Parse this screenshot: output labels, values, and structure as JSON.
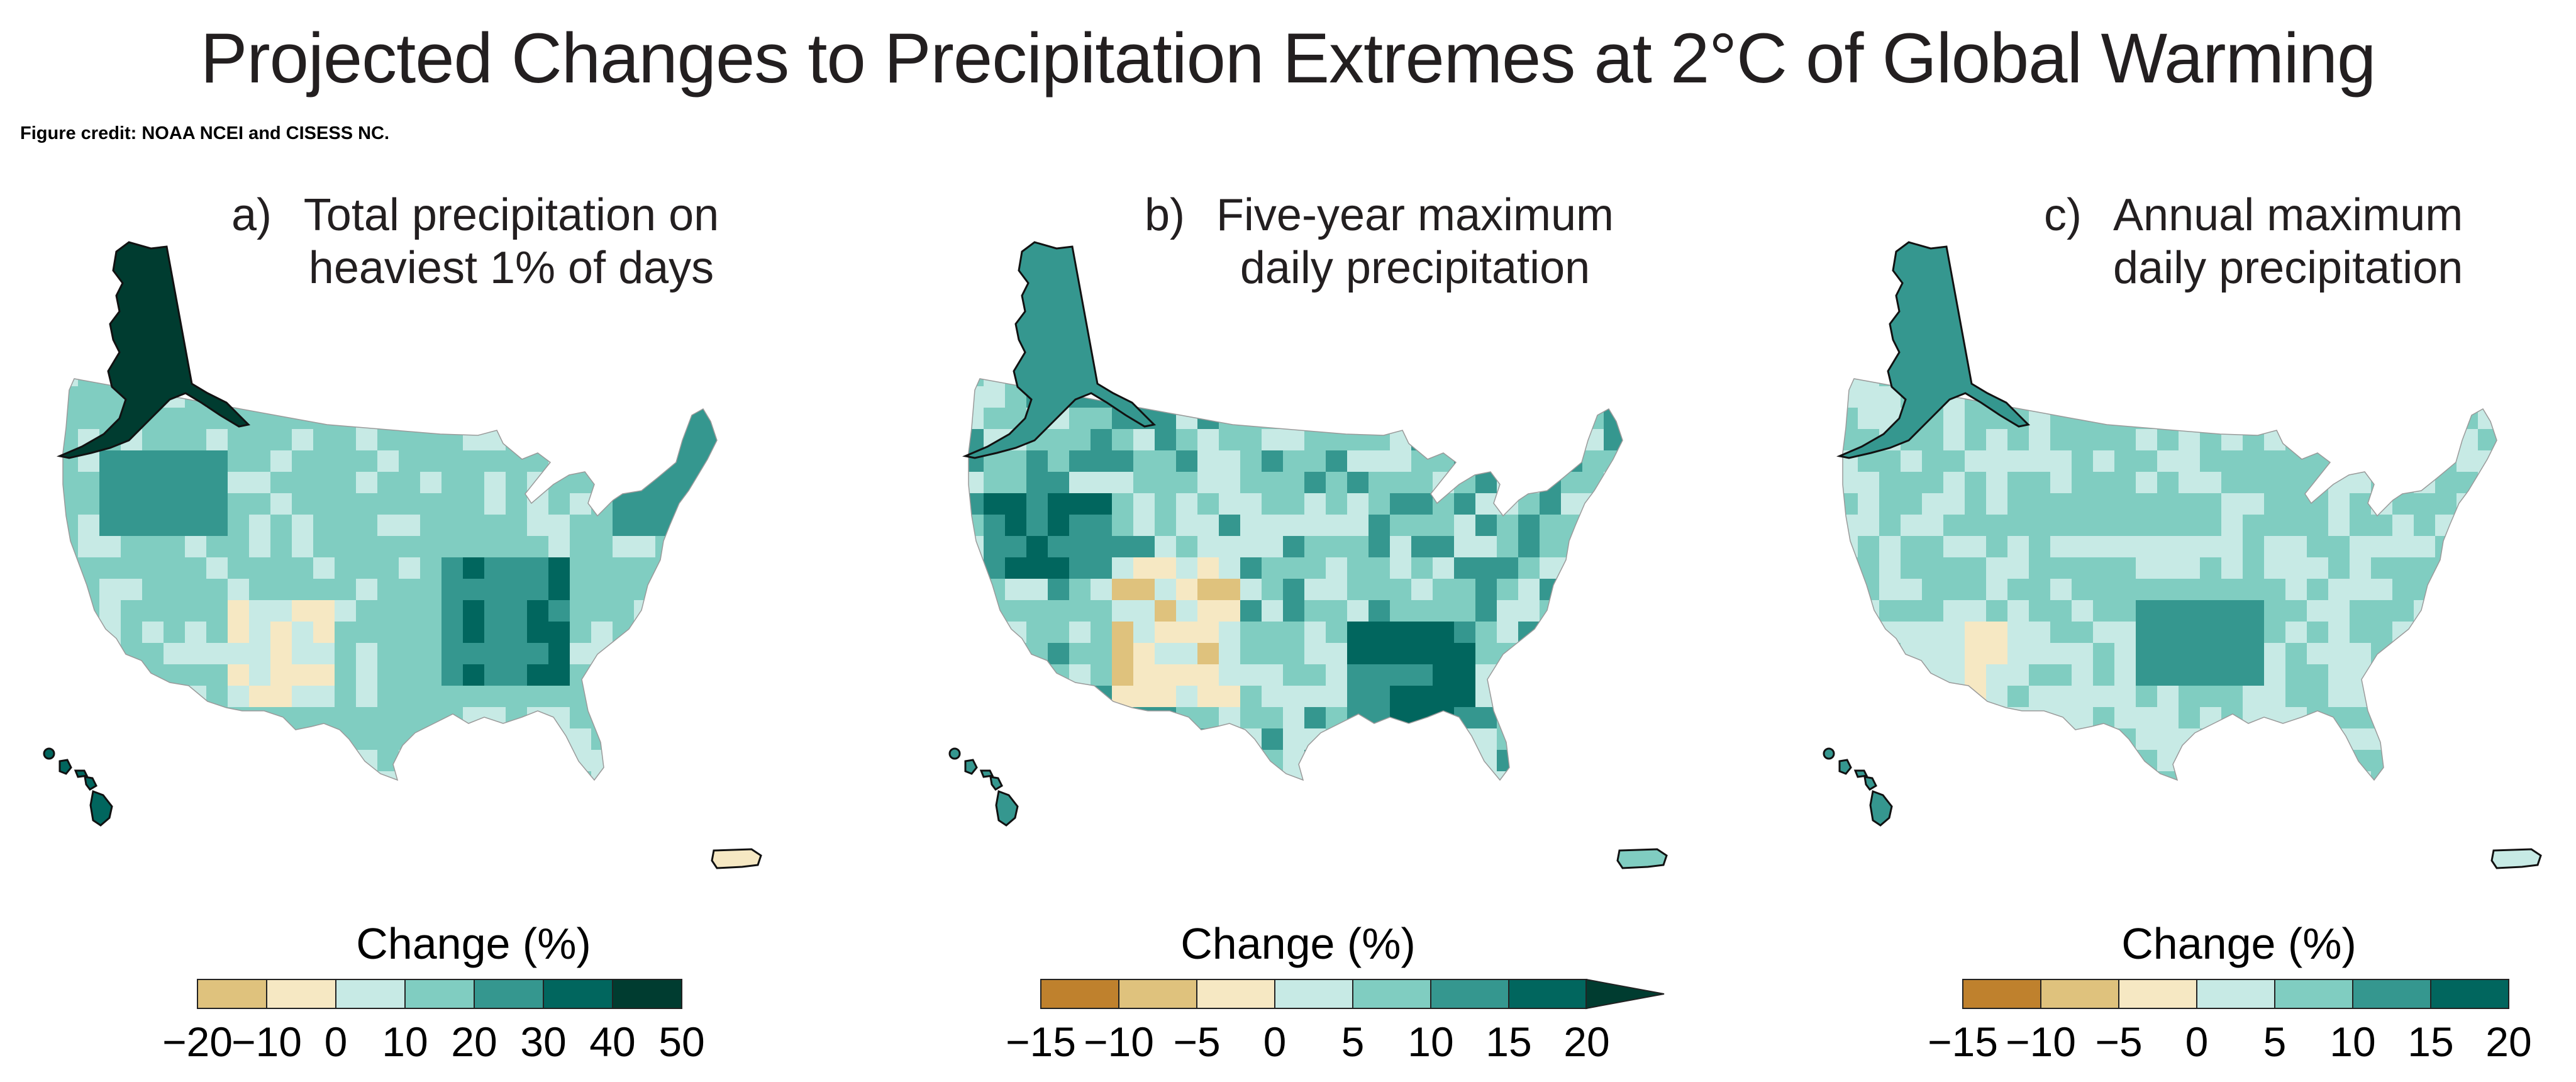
{
  "title": "Projected Changes to Precipitation Extremes at 2°C of Global Warming",
  "credit": "Figure credit: NOAA NCEI and CISESS NC.",
  "palette": {
    "-3": "#bf812d",
    "-2": "#dfc27d",
    "-1": "#f6e8c3",
    "0": "#c7eae5",
    "1": "#80cdc1",
    "2": "#35978f",
    "3": "#01665e",
    "4": "#003c30"
  },
  "chart_data": [
    {
      "type": "heatmap",
      "panel": "a)",
      "title": "Total precipitation on heaviest 1% of days",
      "legend_title": "Change (%)",
      "bins": [
        -20,
        -10,
        0,
        10,
        20,
        30,
        40,
        50
      ],
      "tick_labels": [
        "−20",
        "−10",
        "0",
        "10",
        "20",
        "30",
        "40",
        "50"
      ],
      "colors": [
        "#dfc27d",
        "#f6e8c3",
        "#c7eae5",
        "#80cdc1",
        "#35978f",
        "#01665e",
        "#003c30"
      ],
      "extend_arrow": false,
      "regions": {
        "alaska": "30 to 40 (+)",
        "hawaii": "30 to 40",
        "puerto_rico": "-10 to 0",
        "conus_dominant": "10 to 20",
        "southeast_tennessee_valley": "20 to 40",
        "northeast_maine": "20 to 30",
        "southwest_new_mexico_arizona": "-10 to 10"
      }
    },
    {
      "type": "heatmap",
      "panel": "b)",
      "title": "Five-year maximum daily precipitation",
      "legend_title": "Change (%)",
      "bins": [
        -15,
        -10,
        -5,
        0,
        5,
        10,
        15,
        20
      ],
      "tick_labels": [
        "−15",
        "−10",
        "−5",
        "0",
        "5",
        "10",
        "15",
        "20"
      ],
      "colors": [
        "#bf812d",
        "#dfc27d",
        "#f6e8c3",
        "#c7eae5",
        "#80cdc1",
        "#35978f",
        "#01665e",
        "#003c30"
      ],
      "extend_arrow": true,
      "regions": {
        "alaska": "10 to 15",
        "hawaii": "10 to 15",
        "puerto_rico": "5 to 10",
        "conus_dominant": "0 to 15 (patchy)",
        "great_plains_northwest": "15 to 20+",
        "southwest_colorado_new_mexico": "-15 to 0"
      }
    },
    {
      "type": "heatmap",
      "panel": "c)",
      "title": "Annual maximum daily precipitation",
      "legend_title": "Change (%)",
      "bins": [
        -15,
        -10,
        -5,
        0,
        5,
        10,
        15,
        20
      ],
      "tick_labels": [
        "−15",
        "−10",
        "−5",
        "0",
        "5",
        "10",
        "15",
        "20"
      ],
      "colors": [
        "#bf812d",
        "#dfc27d",
        "#f6e8c3",
        "#c7eae5",
        "#80cdc1",
        "#35978f",
        "#01665e"
      ],
      "extend_arrow": false,
      "regions": {
        "alaska": "10 to 15",
        "hawaii": "10 to 15",
        "puerto_rico": "0 to 5",
        "conus_dominant": "0 to 10",
        "southeast_oklahoma_arkansas": "10 to 15",
        "southwest_arizona": "-10 to 0"
      }
    }
  ],
  "panels": [
    {
      "letter": "a)",
      "line1": "Total precipitation on",
      "line2": "heaviest 1% of days",
      "legend_title": "Change (%)"
    },
    {
      "letter": "b)",
      "line1": "Five-year maximum",
      "line2": "daily precipitation",
      "legend_title": "Change (%)"
    },
    {
      "letter": "c)",
      "line1": "Annual maximum",
      "line2": "daily precipitation",
      "legend_title": "Change (%)"
    }
  ]
}
